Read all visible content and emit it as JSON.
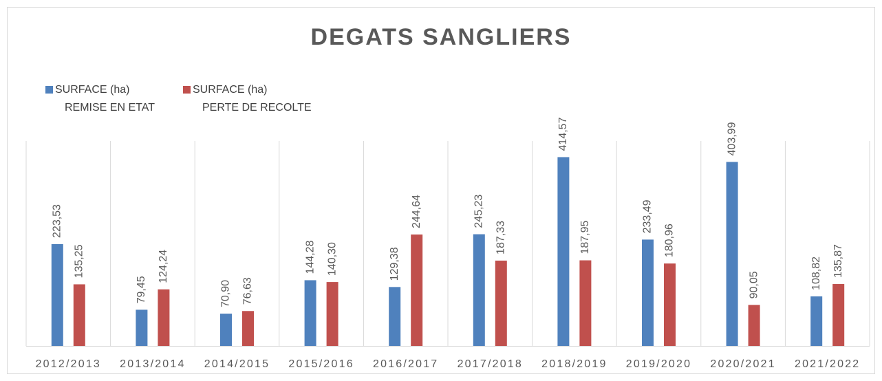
{
  "chart_data": {
    "type": "bar",
    "title": "DEGATS SANGLIERS",
    "categories": [
      "2012/2013",
      "2013/2014",
      "2014/2015",
      "2015/2016",
      "2016/2017",
      "2017/2018",
      "2018/2019",
      "2019/2020",
      "2020/2021",
      "2021/2022"
    ],
    "series": [
      {
        "name": "SURFACE (ha)\nREMISE EN ETAT",
        "color": "#4f81bd",
        "values": [
          223.53,
          79.45,
          70.9,
          144.28,
          129.38,
          245.23,
          414.57,
          233.49,
          403.99,
          108.82
        ],
        "value_labels": [
          "223,53",
          "79,45",
          "70,90",
          "144,28",
          "129,38",
          "245,23",
          "414,57",
          "233,49",
          "403,99",
          "108,82"
        ]
      },
      {
        "name": "SURFACE (ha)\nPERTE DE RECOLTE",
        "color": "#c0504d",
        "values": [
          135.25,
          124.24,
          76.63,
          140.3,
          244.64,
          187.33,
          187.95,
          180.96,
          90.05,
          135.87
        ],
        "value_labels": [
          "135,25",
          "124,24",
          "76,63",
          "140,30",
          "244,64",
          "187,33",
          "187,95",
          "180,96",
          "90,05",
          "135,87"
        ]
      }
    ],
    "ylim": [
      0,
      450
    ],
    "legend": "top-left"
  }
}
